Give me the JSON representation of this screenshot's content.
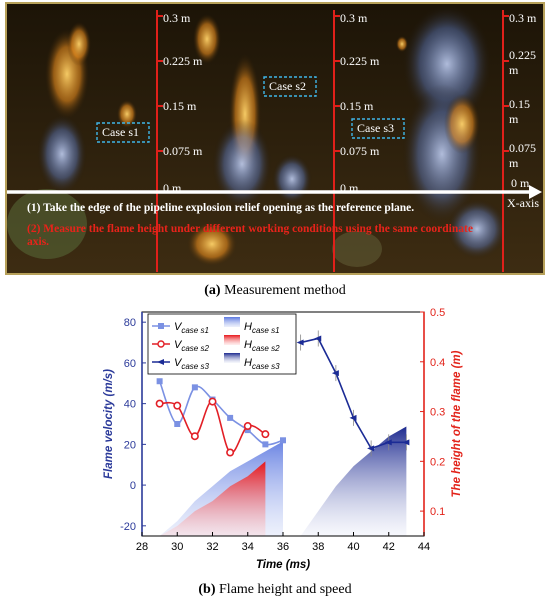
{
  "photo": {
    "scale_labels": [
      "0.3 m",
      "0.225 m",
      "0.15 m",
      "0.075 m",
      "0 m"
    ],
    "scale_labels_right": [
      "0.3 m",
      "0.225",
      "m",
      "0.15",
      "m",
      "0.075",
      "m",
      "0 m"
    ],
    "case_labels": [
      "Case s1",
      "Case s2",
      "Case s3"
    ],
    "x_axis_label": "X-axis",
    "note_1": "(1)  Take the edge of the pipeline explosion relief opening as the reference plane.",
    "note_2_line1": "(2)  Measure the flame height under different working conditions using the same coordinate",
    "note_2_line2": "axis."
  },
  "captions": {
    "a_bold": "(a)",
    "a_text": " Measurement method",
    "b_bold": "(b)",
    "b_text": " Flame height and speed"
  },
  "colors": {
    "s1": "#7b91e3",
    "s2": "#e21f26",
    "s3": "#1b2b95",
    "right_axis": "#e2231a",
    "left_axis": "#2b3a9a"
  },
  "chart_data": {
    "type": "line",
    "xlabel": "Time (ms)",
    "ylabel_left": "Flame velocity  (m/s)",
    "ylabel_right": "The height of the flame (m)",
    "xlim": [
      28,
      44
    ],
    "ylim_left": [
      -25,
      85
    ],
    "ylim_right": [
      0.05,
      0.5
    ],
    "x_ticks": [
      28,
      30,
      32,
      34,
      36,
      38,
      40,
      42,
      44
    ],
    "y_left_ticks": [
      -20,
      0,
      20,
      40,
      60,
      80
    ],
    "y_right_ticks": [
      0.1,
      0.2,
      0.3,
      0.4,
      0.5
    ],
    "velocity_series": [
      {
        "name": "V",
        "sub": "case s1",
        "x": [
          29,
          30,
          31,
          32,
          33,
          34,
          35,
          36
        ],
        "y": [
          51,
          30,
          48,
          42,
          33,
          27,
          20,
          22
        ]
      },
      {
        "name": "V",
        "sub": "case s2",
        "x": [
          29,
          30,
          31,
          32,
          33,
          34,
          35
        ],
        "y": [
          40,
          39,
          24,
          41,
          16,
          29,
          25
        ]
      },
      {
        "name": "V",
        "sub": "case s3",
        "x": [
          37,
          38,
          39,
          40,
          41,
          42,
          43
        ],
        "y": [
          70,
          72,
          55,
          33,
          18,
          21,
          21
        ]
      }
    ],
    "height_series": [
      {
        "name": "H",
        "sub": "case s1",
        "x": [
          29,
          30,
          31,
          32,
          33,
          34,
          35,
          36
        ],
        "y": [
          0.05,
          0.08,
          0.12,
          0.15,
          0.18,
          0.2,
          0.22,
          0.24
        ]
      },
      {
        "name": "H",
        "sub": "case s2",
        "x": [
          29,
          30,
          31,
          32,
          33,
          34,
          35
        ],
        "y": [
          0.05,
          0.07,
          0.1,
          0.12,
          0.15,
          0.17,
          0.2
        ]
      },
      {
        "name": "H",
        "sub": "case s3",
        "x": [
          37,
          38,
          39,
          40,
          41,
          42,
          43
        ],
        "y": [
          0.05,
          0.1,
          0.15,
          0.19,
          0.22,
          0.25,
          0.27
        ]
      }
    ]
  }
}
